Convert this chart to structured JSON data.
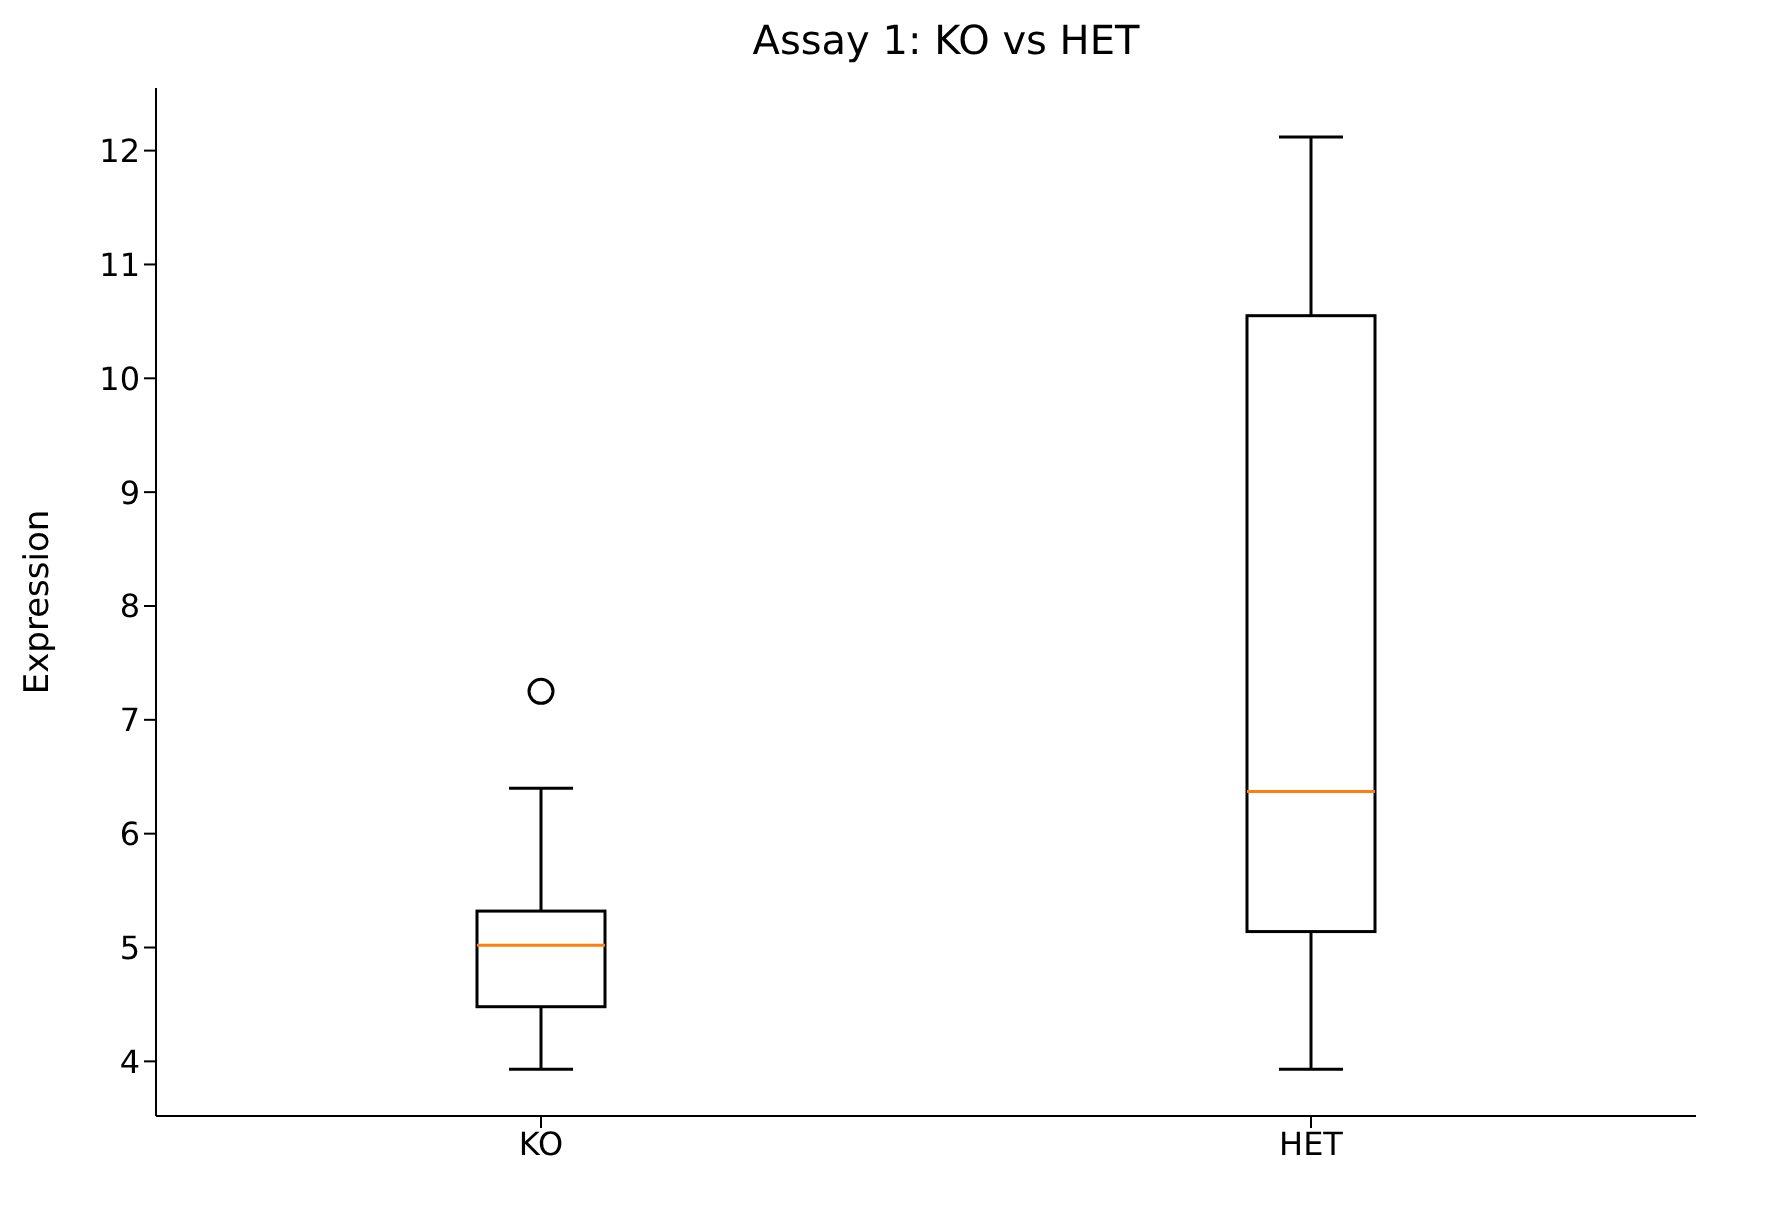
{
  "chart_data": {
    "type": "box",
    "title": "Assay 1: KO vs HET",
    "ylabel": "Expression",
    "categories": [
      "KO",
      "HET"
    ],
    "boxes": [
      {
        "low": 3.93,
        "q1": 4.48,
        "median": 5.02,
        "q3": 5.32,
        "high": 6.4,
        "outliers": [
          7.25
        ]
      },
      {
        "low": 3.93,
        "q1": 5.14,
        "median": 6.37,
        "q3": 10.55,
        "high": 12.12
      }
    ],
    "ylim": [
      3.52,
      12.55
    ],
    "yticks": [
      4,
      5,
      6,
      7,
      8,
      9,
      10,
      11,
      12
    ],
    "grid": false,
    "legend": false
  }
}
